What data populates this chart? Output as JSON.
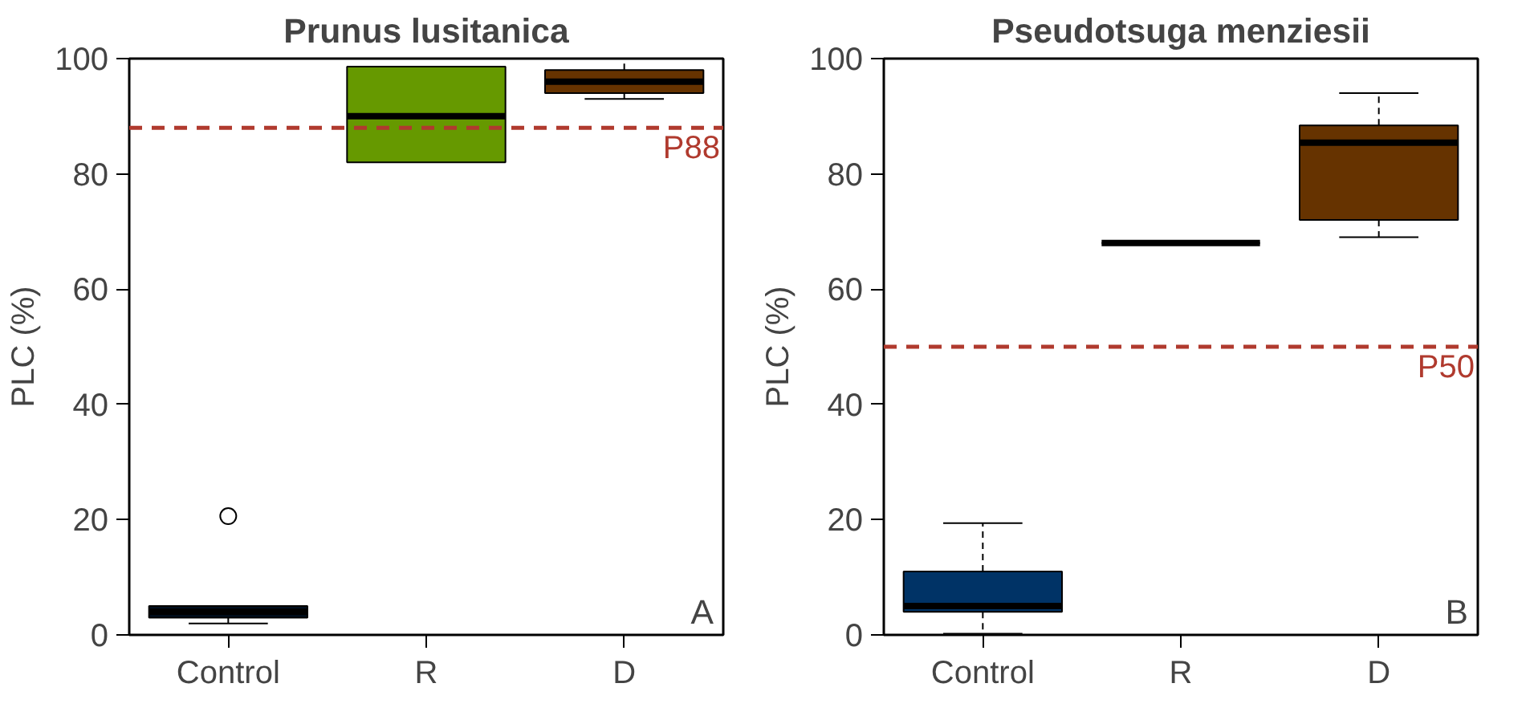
{
  "chart_data": [
    {
      "type": "box",
      "title": "Prunus lusitanica",
      "ylabel": "PLC (%)",
      "categories": [
        "Control",
        "R",
        "D"
      ],
      "colors": [
        "#000f1f",
        "#669900",
        "#663300"
      ],
      "boxes": [
        {
          "low": 2,
          "q1": 3,
          "median": 4,
          "q3": 5,
          "high": 5,
          "outliers": [
            20.6
          ]
        },
        {
          "low": 82,
          "q1": 82,
          "median": 90,
          "q3": 98.6,
          "high": 98.6
        },
        {
          "low": 93,
          "q1": 94,
          "median": 96,
          "q3": 98,
          "high": 100
        }
      ],
      "ylim": [
        0,
        100
      ],
      "yticks": [
        0,
        20,
        40,
        60,
        80,
        100
      ],
      "grid": false,
      "ref_lines": [
        {
          "axis": "y",
          "value": 88,
          "label": "P88",
          "color": "#b03a2e",
          "line_style": "dashed"
        }
      ],
      "annotations": [
        "A"
      ]
    },
    {
      "type": "box",
      "title": "Pseudotsuga menziesii",
      "ylabel": "PLC (%)",
      "categories": [
        "Control",
        "R",
        "D"
      ],
      "colors": [
        "#003366",
        "#000000",
        "#663300"
      ],
      "boxes": [
        {
          "low": 0.2,
          "q1": 4,
          "median": 5,
          "q3": 11,
          "high": 19.4
        },
        {
          "low": 68,
          "q1": 68,
          "median": 68,
          "q3": 68,
          "high": 68
        },
        {
          "low": 69,
          "q1": 72,
          "median": 85.4,
          "q3": 88.4,
          "high": 94
        }
      ],
      "ylim": [
        0,
        100
      ],
      "yticks": [
        0,
        20,
        40,
        60,
        80,
        100
      ],
      "grid": false,
      "ref_lines": [
        {
          "axis": "y",
          "value": 50,
          "label": "P50",
          "color": "#b03a2e",
          "line_style": "dashed"
        }
      ],
      "annotations": [
        "B"
      ]
    }
  ]
}
